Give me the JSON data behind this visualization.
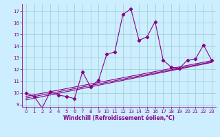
{
  "xlabel": "Windchill (Refroidissement éolien,°C)",
  "background_color": "#cceeff",
  "line_color": "#880088",
  "xlim": [
    -0.5,
    23.5
  ],
  "ylim": [
    8.8,
    17.6
  ],
  "yticks": [
    9,
    10,
    11,
    12,
    13,
    14,
    15,
    16,
    17
  ],
  "xticks": [
    0,
    1,
    2,
    3,
    4,
    5,
    6,
    7,
    8,
    9,
    10,
    11,
    12,
    13,
    14,
    15,
    16,
    17,
    18,
    19,
    20,
    21,
    22,
    23
  ],
  "series1_x": [
    0,
    1,
    2,
    3,
    4,
    5,
    6,
    7,
    8,
    9,
    10,
    11,
    12,
    13,
    14,
    15,
    16,
    17,
    18,
    19,
    20,
    21,
    22,
    23
  ],
  "series1_y": [
    10.0,
    9.7,
    8.7,
    10.1,
    9.8,
    9.7,
    9.5,
    11.8,
    10.5,
    11.1,
    13.3,
    13.5,
    16.7,
    17.2,
    14.5,
    14.8,
    16.1,
    12.8,
    12.2,
    12.1,
    12.8,
    12.9,
    14.1,
    12.8
  ],
  "series2_x": [
    0,
    23
  ],
  "series2_y": [
    9.4,
    12.6
  ],
  "series3_x": [
    0,
    23
  ],
  "series3_y": [
    9.55,
    12.65
  ],
  "series4_x": [
    0,
    23
  ],
  "series4_y": [
    9.7,
    12.75
  ],
  "grid_color": "#99cccc",
  "marker": "D",
  "markersize": 2.2,
  "linewidth": 0.8,
  "tick_fontsize": 5.0,
  "xlabel_fontsize": 5.5
}
